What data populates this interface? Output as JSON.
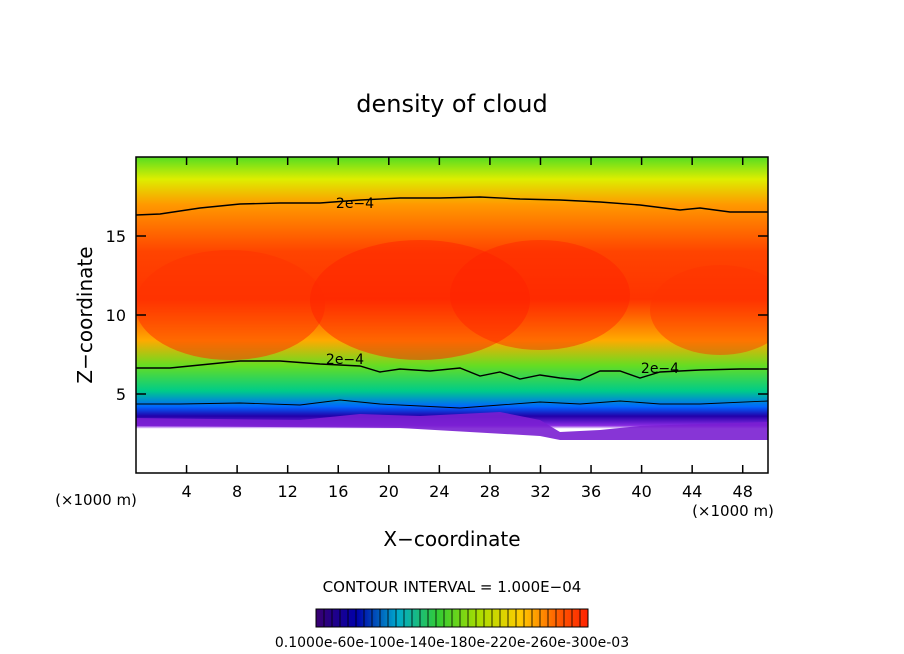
{
  "chart_data": {
    "type": "heatmap",
    "title": "density of cloud",
    "xlabel": "X−coordinate",
    "ylabel": "Z−coordinate",
    "x_unit_label_left": "(×1000 m)",
    "x_unit_label_right": "(×1000 m)",
    "xlim": [
      0,
      50
    ],
    "ylim": [
      0,
      20
    ],
    "xticks": [
      4,
      8,
      12,
      16,
      20,
      24,
      28,
      32,
      36,
      40,
      44,
      48
    ],
    "yticks": [
      5,
      10,
      15
    ],
    "contour_label": "2e−4",
    "contour_interval_text": "CONTOUR INTERVAL = 1.000E−04",
    "colorbar_labels": "0.1000e-60e-100e-140e-180e-220e-260e-300e-03",
    "colors": {
      "low": "#4b0082",
      "mid": "#33cc33",
      "high": "#ff2200"
    }
  }
}
